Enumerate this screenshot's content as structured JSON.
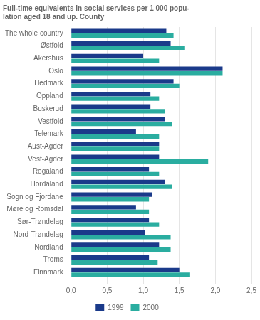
{
  "chart_data": {
    "type": "bar",
    "orientation": "horizontal",
    "title": [
      "Full-time equivalents in social services per 1 000 popu-",
      "lation aged 18 and up. County"
    ],
    "categories": [
      "The whole country",
      "Østfold",
      "Akershus",
      "Oslo",
      "Hedmark",
      "Oppland",
      "Buskerud",
      "Vestfold",
      "Telemark",
      "Aust-Agder",
      "Vest-Agder",
      "Rogaland",
      "Hordaland",
      "Sogn og Fjordane",
      "Møre og Romsdal",
      "Sør-Trøndelag",
      "Nord-Trøndelag",
      "Nordland",
      "Troms",
      "Finnmark"
    ],
    "series": [
      {
        "name": "1999",
        "color": "#1a3a8a",
        "values": [
          1.32,
          1.38,
          1.0,
          2.1,
          1.42,
          1.1,
          1.1,
          1.3,
          0.9,
          1.22,
          1.22,
          1.08,
          1.3,
          1.12,
          0.9,
          1.08,
          1.02,
          1.22,
          1.08,
          1.5
        ]
      },
      {
        "name": "2000",
        "color": "#2aada0",
        "values": [
          1.42,
          1.58,
          1.22,
          2.1,
          1.5,
          1.22,
          1.3,
          1.4,
          1.22,
          1.22,
          1.9,
          1.22,
          1.4,
          1.08,
          1.08,
          1.22,
          1.38,
          1.38,
          1.2,
          1.65
        ]
      }
    ],
    "xlim": [
      0,
      2.5
    ],
    "xticks": [
      {
        "value": 0.0,
        "label": "0,0"
      },
      {
        "value": 0.5,
        "label": "0,5"
      },
      {
        "value": 1.0,
        "label": "1,0"
      },
      {
        "value": 1.5,
        "label": "1,5"
      },
      {
        "value": 2.0,
        "label": "2,0"
      },
      {
        "value": 2.5,
        "label": "2,5"
      }
    ],
    "grid": true,
    "legend": "bottom"
  }
}
